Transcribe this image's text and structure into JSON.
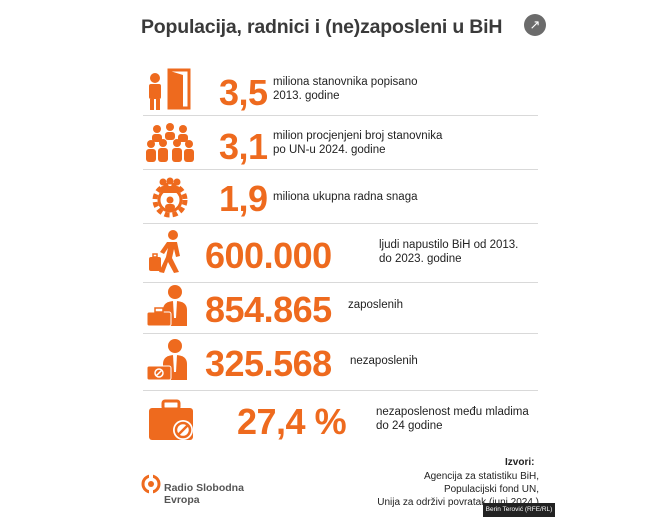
{
  "header": {
    "title": "Populacija, radnici i (ne)zaposleni u BiH",
    "share_icon": "share-icon"
  },
  "colors": {
    "accent": "#ee6a1e",
    "text": "#222222",
    "title": "#3a3a3a"
  },
  "rows": [
    {
      "icon": "person-door-icon",
      "value": "3,5",
      "line1": "miliona stanovnika popisano",
      "line2": "2013. godine"
    },
    {
      "icon": "crowd-icon",
      "value": "3,1",
      "line1": "milion procjenjeni broj stanovnika",
      "line2": "po UN-u 2024. godine"
    },
    {
      "icon": "workforce-gear-icon",
      "value": "1,9",
      "line1": "miliona ukupna radna snaga",
      "line2": ""
    },
    {
      "icon": "emigrant-luggage-icon",
      "value": "600.000",
      "line1": "ljudi napustilo BiH od 2013.",
      "line2": "do 2023. godine"
    },
    {
      "icon": "employed-person-icon",
      "value": "854.865",
      "line1": "zaposlenih",
      "line2": ""
    },
    {
      "icon": "unemployed-person-icon",
      "value": "325.568",
      "line1": "nezaposlenih",
      "line2": ""
    },
    {
      "icon": "youth-unemployment-briefcase-icon",
      "value": "27,4 %",
      "line1": "nezaposlenost među mladima",
      "line2": "do 24 godine"
    }
  ],
  "sources": {
    "heading": "Izvori:",
    "lines": [
      "Agencija za statistiku BiH,",
      "Populacijski fond UN,",
      "Unija za održivi povratak (juni 2024.)"
    ]
  },
  "footer": {
    "logo_line1": "Radio Slobodna",
    "logo_line2": "Evropa",
    "credit": "Berin Terović (RFE/RL)"
  }
}
